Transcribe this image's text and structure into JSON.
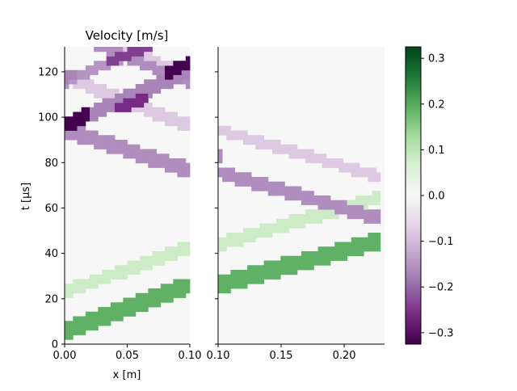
{
  "chart_data": {
    "type": "heatmap",
    "title": "Velocity [m/s]",
    "xlabel": "x [m]",
    "ylabel": "t [µs]",
    "unit_x": "m",
    "unit_t": "µs",
    "panels": [
      {
        "name": "left",
        "xlim": [
          0.0,
          0.1
        ],
        "ylim": [
          0,
          131
        ],
        "xticks": [
          {
            "value": 0.0,
            "label": "0.00"
          },
          {
            "value": 0.05,
            "label": "0.05"
          },
          {
            "value": 0.1,
            "label": "0.10"
          }
        ],
        "bands": [
          {
            "x0": 0.0,
            "t0": 2,
            "x1": 0.1,
            "t1": 22,
            "width": 8,
            "v": 0.19
          },
          {
            "x0": 0.0,
            "t0": 20,
            "x1": 0.1,
            "t1": 40,
            "width": 6,
            "v": 0.08
          },
          {
            "x0": 0.0,
            "t0": 91,
            "x1": 0.1,
            "t1": 73,
            "width": 7,
            "v": -0.16
          },
          {
            "x0": 0.0,
            "t0": 93,
            "x1": 0.02,
            "t1": 98,
            "width": 7,
            "v": -0.32
          },
          {
            "x0": 0.02,
            "t0": 98,
            "x1": 0.1,
            "t1": 117,
            "width": 7,
            "v": -0.17
          },
          {
            "x0": 0.1,
            "t0": 93,
            "x1": 0.0,
            "t1": 115,
            "width": 6,
            "v": -0.08
          },
          {
            "x0": 0.1,
            "t0": 115,
            "x1": 0.0,
            "t1": 137,
            "width": 6,
            "v": -0.08
          },
          {
            "x0": 0.0,
            "t0": 113,
            "x1": 0.1,
            "t1": 137,
            "width": 5,
            "v": -0.15
          },
          {
            "x0": 0.0,
            "t0": 115,
            "x1": 0.01,
            "t1": 117,
            "width": 5,
            "v": -0.17
          },
          {
            "x0": 0.1,
            "t0": 113,
            "x1": 0.0,
            "t1": 135,
            "width": 5,
            "v": -0.16
          },
          {
            "x0": 0.04,
            "t0": 101,
            "x1": 0.065,
            "t1": 106,
            "width": 5,
            "v": -0.26
          },
          {
            "x0": 0.035,
            "t0": 122,
            "x1": 0.07,
            "t1": 129,
            "width": 5,
            "v": -0.24
          },
          {
            "x0": 0.08,
            "t0": 116,
            "x1": 0.1,
            "t1": 121,
            "width": 6,
            "v": -0.32
          }
        ]
      },
      {
        "name": "right",
        "xlim": [
          0.1,
          0.232
        ],
        "ylim": [
          0,
          131
        ],
        "xticks": [
          {
            "value": 0.1,
            "label": "0.10"
          },
          {
            "value": 0.15,
            "label": "0.15"
          },
          {
            "value": 0.2,
            "label": "0.20"
          }
        ],
        "bands": [
          {
            "x0": 0.1,
            "t0": 22,
            "x1": 0.23,
            "t1": 42,
            "width": 8,
            "v": 0.19
          },
          {
            "x0": 0.1,
            "t0": 41,
            "x1": 0.23,
            "t1": 62,
            "width": 6,
            "v": 0.08
          },
          {
            "x0": 0.1,
            "t0": 92,
            "x1": 0.23,
            "t1": 71,
            "width": 5,
            "v": -0.08
          },
          {
            "x0": 0.1,
            "t0": 73,
            "x1": 0.23,
            "t1": 52,
            "width": 6,
            "v": -0.16
          },
          {
            "x0": 0.1,
            "t0": 80,
            "x1": 0.102,
            "t1": 80,
            "width": 6,
            "v": -0.16
          }
        ]
      }
    ],
    "colorbar": {
      "colormap": "PRGn",
      "vmin": -0.325,
      "vmax": 0.325,
      "ticks": [
        {
          "value": 0.3,
          "label": "0.3"
        },
        {
          "value": 0.2,
          "label": "0.2"
        },
        {
          "value": 0.1,
          "label": "0.1"
        },
        {
          "value": 0.0,
          "label": "0.0"
        },
        {
          "value": -0.1,
          "label": "−0.1"
        },
        {
          "value": -0.2,
          "label": "−0.2"
        },
        {
          "value": -0.3,
          "label": "−0.3"
        }
      ]
    },
    "yticks": [
      {
        "value": 0,
        "label": "0"
      },
      {
        "value": 20,
        "label": "20"
      },
      {
        "value": 40,
        "label": "40"
      },
      {
        "value": 60,
        "label": "60"
      },
      {
        "value": 80,
        "label": "80"
      },
      {
        "value": 100,
        "label": "100"
      },
      {
        "value": 120,
        "label": "120"
      }
    ],
    "grid": false,
    "legend": "colorbar-right"
  }
}
